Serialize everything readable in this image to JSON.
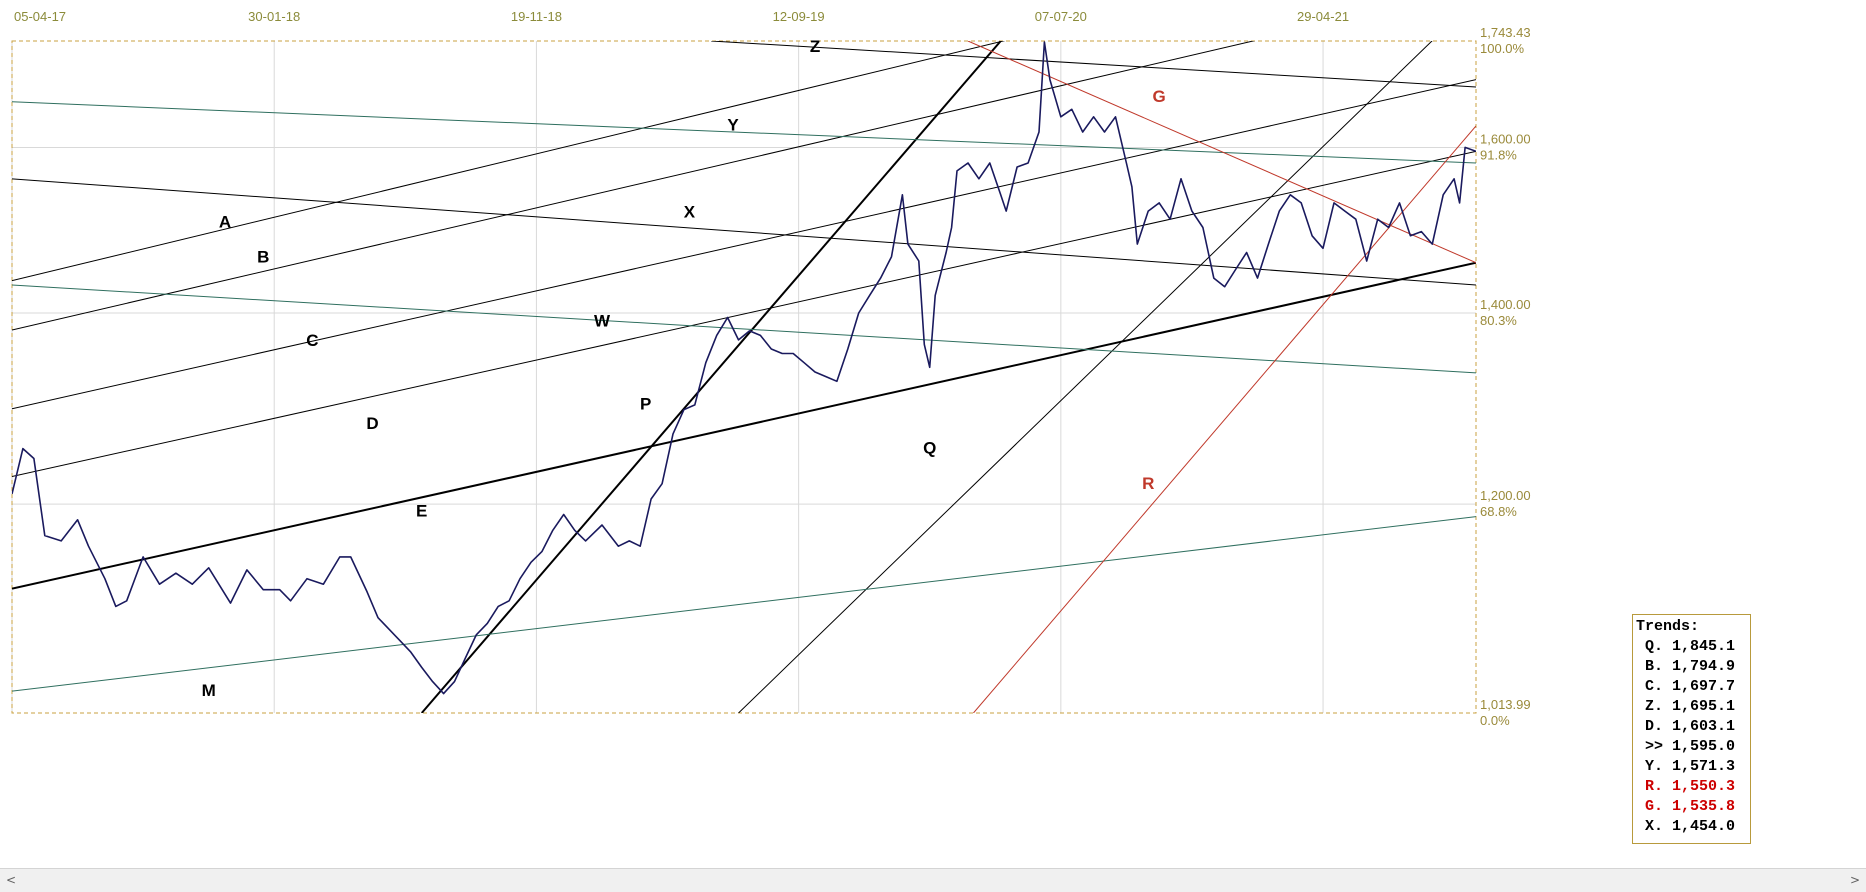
{
  "chart_data": {
    "type": "line",
    "x_axis": {
      "tick_labels": [
        "05-04-17",
        "30-01-18",
        "19-11-18",
        "12-09-19",
        "07-07-20",
        "29-04-21"
      ]
    },
    "y_axis": {
      "scale": "log",
      "ylim": [
        1013.99,
        1743.43
      ],
      "ticks": [
        {
          "value": 1743.43,
          "label": "1,743.43",
          "pct": "100.0%"
        },
        {
          "value": 1600,
          "label": "1,600.00",
          "pct": "91.8%"
        },
        {
          "value": 1400,
          "label": "1,400.00",
          "pct": "80.3%"
        },
        {
          "value": 1200,
          "label": "1,200.00",
          "pct": "68.8%"
        },
        {
          "value": 1013.99,
          "label": "1,013.99",
          "pct": "0.0%"
        }
      ]
    },
    "grid": true,
    "colors": {
      "price": "#1a1a5e",
      "trend_black": "#000000",
      "trend_teal": "#2f6f5f",
      "trend_red": "#c0392b",
      "frame": "#c8a040",
      "grid": "#d9d9d9",
      "axis_text": "#8b8b3a"
    },
    "price_series": [
      [
        0,
        1210
      ],
      [
        4,
        1255
      ],
      [
        8,
        1245
      ],
      [
        12,
        1170
      ],
      [
        18,
        1165
      ],
      [
        24,
        1185
      ],
      [
        28,
        1160
      ],
      [
        34,
        1130
      ],
      [
        38,
        1105
      ],
      [
        42,
        1110
      ],
      [
        48,
        1150
      ],
      [
        54,
        1125
      ],
      [
        60,
        1135
      ],
      [
        66,
        1125
      ],
      [
        72,
        1140
      ],
      [
        80,
        1108
      ],
      [
        86,
        1138
      ],
      [
        92,
        1120
      ],
      [
        98,
        1120
      ],
      [
        102,
        1110
      ],
      [
        108,
        1130
      ],
      [
        114,
        1125
      ],
      [
        120,
        1150
      ],
      [
        124,
        1150
      ],
      [
        130,
        1118
      ],
      [
        134,
        1095
      ],
      [
        138,
        1085
      ],
      [
        142,
        1075
      ],
      [
        146,
        1065
      ],
      [
        150,
        1052
      ],
      [
        154,
        1040
      ],
      [
        158,
        1030
      ],
      [
        162,
        1040
      ],
      [
        166,
        1060
      ],
      [
        170,
        1080
      ],
      [
        174,
        1090
      ],
      [
        178,
        1105
      ],
      [
        182,
        1110
      ],
      [
        186,
        1130
      ],
      [
        190,
        1145
      ],
      [
        194,
        1155
      ],
      [
        198,
        1175
      ],
      [
        202,
        1190
      ],
      [
        206,
        1175
      ],
      [
        210,
        1165
      ],
      [
        216,
        1180
      ],
      [
        222,
        1160
      ],
      [
        226,
        1165
      ],
      [
        230,
        1160
      ],
      [
        234,
        1205
      ],
      [
        238,
        1220
      ],
      [
        242,
        1270
      ],
      [
        246,
        1295
      ],
      [
        250,
        1300
      ],
      [
        254,
        1345
      ],
      [
        258,
        1375
      ],
      [
        262,
        1395
      ],
      [
        266,
        1370
      ],
      [
        270,
        1380
      ],
      [
        274,
        1375
      ],
      [
        278,
        1360
      ],
      [
        282,
        1355
      ],
      [
        286,
        1355
      ],
      [
        290,
        1345
      ],
      [
        294,
        1335
      ],
      [
        298,
        1330
      ],
      [
        302,
        1325
      ],
      [
        306,
        1360
      ],
      [
        310,
        1400
      ],
      [
        314,
        1420
      ],
      [
        318,
        1440
      ],
      [
        322,
        1465
      ],
      [
        326,
        1540
      ],
      [
        328,
        1480
      ],
      [
        332,
        1460
      ],
      [
        334,
        1365
      ],
      [
        336,
        1340
      ],
      [
        338,
        1420
      ],
      [
        342,
        1470
      ],
      [
        344,
        1500
      ],
      [
        346,
        1570
      ],
      [
        350,
        1580
      ],
      [
        354,
        1560
      ],
      [
        358,
        1580
      ],
      [
        362,
        1540
      ],
      [
        364,
        1520
      ],
      [
        368,
        1575
      ],
      [
        372,
        1580
      ],
      [
        376,
        1620
      ],
      [
        378,
        1742
      ],
      [
        380,
        1690
      ],
      [
        384,
        1640
      ],
      [
        388,
        1650
      ],
      [
        392,
        1620
      ],
      [
        396,
        1640
      ],
      [
        400,
        1620
      ],
      [
        404,
        1640
      ],
      [
        408,
        1580
      ],
      [
        410,
        1550
      ],
      [
        412,
        1480
      ],
      [
        416,
        1520
      ],
      [
        420,
        1530
      ],
      [
        424,
        1510
      ],
      [
        428,
        1560
      ],
      [
        432,
        1520
      ],
      [
        436,
        1500
      ],
      [
        438,
        1470
      ],
      [
        440,
        1440
      ],
      [
        444,
        1430
      ],
      [
        448,
        1450
      ],
      [
        452,
        1470
      ],
      [
        456,
        1440
      ],
      [
        460,
        1480
      ],
      [
        464,
        1520
      ],
      [
        468,
        1540
      ],
      [
        472,
        1530
      ],
      [
        476,
        1490
      ],
      [
        480,
        1475
      ],
      [
        484,
        1530
      ],
      [
        488,
        1520
      ],
      [
        492,
        1510
      ],
      [
        496,
        1460
      ],
      [
        500,
        1510
      ],
      [
        504,
        1500
      ],
      [
        508,
        1530
      ],
      [
        512,
        1490
      ],
      [
        516,
        1495
      ],
      [
        520,
        1480
      ],
      [
        524,
        1540
      ],
      [
        528,
        1560
      ],
      [
        530,
        1530
      ],
      [
        532,
        1600
      ],
      [
        536,
        1595
      ]
    ],
    "trend_lines": [
      {
        "label": "A",
        "color": "black",
        "points": [
          [
            0,
            1437
          ],
          [
            460,
            1836
          ]
        ]
      },
      {
        "label": "B",
        "color": "black",
        "points": [
          [
            0,
            1381
          ],
          [
            536,
            1818
          ]
        ]
      },
      {
        "label": "C",
        "color": "black",
        "points": [
          [
            0,
            1296
          ],
          [
            536,
            1690
          ]
        ]
      },
      {
        "label": "D",
        "color": "black",
        "points": [
          [
            0,
            1227
          ],
          [
            536,
            1595
          ]
        ]
      },
      {
        "label": "E",
        "color": "black",
        "points": [
          [
            0,
            1121
          ],
          [
            536,
            1458
          ]
        ],
        "bold": true
      },
      {
        "label": "P",
        "color": "black",
        "points": [
          [
            150,
            1013.99
          ],
          [
            362,
            1743.43
          ]
        ],
        "bold": true
      },
      {
        "label": "Q",
        "color": "black",
        "points": [
          [
            266,
            1013.99
          ],
          [
            540,
            1820
          ]
        ]
      },
      {
        "label": "X",
        "color": "black",
        "points": [
          [
            0,
            1560
          ],
          [
            536,
            1432
          ]
        ]
      },
      {
        "label": "Y",
        "color": "black",
        "points": [
          [
            0,
            1660
          ],
          [
            536,
            1580
          ]
        ],
        "note": "teal"
      },
      {
        "label": "Z",
        "color": "black",
        "points": [
          [
            256,
            1743.43
          ],
          [
            536,
            1680
          ]
        ]
      },
      {
        "label": "W",
        "color": "teal",
        "points": [
          [
            0,
            1432
          ],
          [
            536,
            1334
          ]
        ]
      },
      {
        "label": "M",
        "color": "teal",
        "points": [
          [
            0,
            1032
          ],
          [
            536,
            1188
          ]
        ]
      },
      {
        "label": "G",
        "color": "red",
        "points": [
          [
            350,
            1743.43
          ],
          [
            536,
            1458
          ]
        ]
      },
      {
        "label": "R",
        "color": "red",
        "points": [
          [
            352,
            1013.99
          ],
          [
            536,
            1628
          ]
        ]
      }
    ],
    "line_label_positions": [
      {
        "label": "A",
        "at": [
          78,
          1500
        ],
        "color": "black"
      },
      {
        "label": "B",
        "at": [
          92,
          1458
        ],
        "color": "black"
      },
      {
        "label": "C",
        "at": [
          110,
          1363
        ],
        "color": "black"
      },
      {
        "label": "D",
        "at": [
          132,
          1275
        ],
        "color": "black"
      },
      {
        "label": "E",
        "at": [
          150,
          1188
        ],
        "color": "black"
      },
      {
        "label": "M",
        "at": [
          72,
          1028
        ],
        "color": "black"
      },
      {
        "label": "W",
        "at": [
          216,
          1385
        ],
        "color": "black"
      },
      {
        "label": "P",
        "at": [
          232,
          1295
        ],
        "color": "black"
      },
      {
        "label": "X",
        "at": [
          248,
          1512
        ],
        "color": "black"
      },
      {
        "label": "Y",
        "at": [
          264,
          1622
        ],
        "color": "black"
      },
      {
        "label": "Z",
        "at": [
          294,
          1728
        ],
        "color": "black"
      },
      {
        "label": "Q",
        "at": [
          336,
          1250
        ],
        "color": "black"
      },
      {
        "label": "G",
        "at": [
          420,
          1660
        ],
        "color": "red"
      },
      {
        "label": "R",
        "at": [
          416,
          1215
        ],
        "color": "red"
      }
    ],
    "legend": {
      "title": "Trends:",
      "items": [
        {
          "text": "Q. 1,845.1",
          "color": "#000000"
        },
        {
          "text": "B. 1,794.9",
          "color": "#000000"
        },
        {
          "text": "C. 1,697.7",
          "color": "#000000"
        },
        {
          "text": "Z. 1,695.1",
          "color": "#000000"
        },
        {
          "text": "D. 1,603.1",
          "color": "#000000"
        },
        {
          "text": ">> 1,595.0",
          "color": "#000000"
        },
        {
          "text": "Y. 1,571.3",
          "color": "#000000"
        },
        {
          "text": "R. 1,550.3",
          "color": "#cc0000"
        },
        {
          "text": "G. 1,535.8",
          "color": "#cc0000"
        },
        {
          "text": "X. 1,454.0",
          "color": "#000000"
        }
      ]
    }
  },
  "scrollbar": {
    "left_arrow": "<",
    "right_arrow": ">"
  }
}
